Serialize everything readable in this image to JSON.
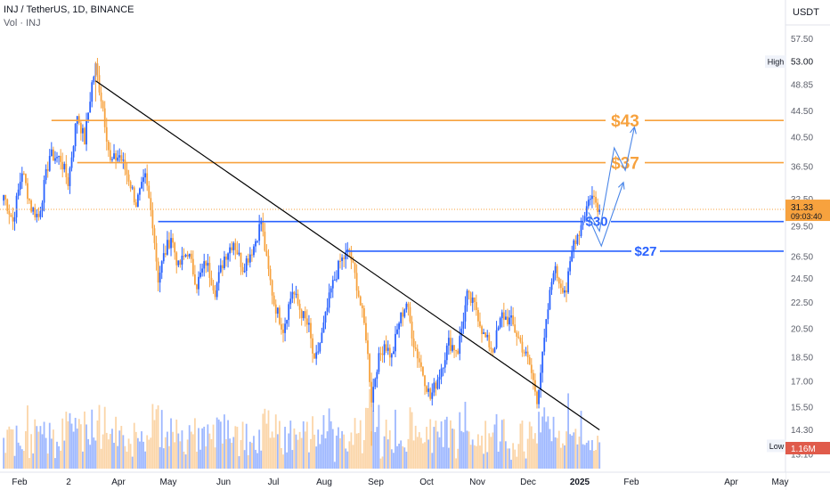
{
  "header": {
    "symbol_line": "INJ / TetherUS, 1D, BINANCE",
    "volume_line": "Vol · INJ"
  },
  "colors": {
    "up": "#2962ff",
    "down": "#f7a23e",
    "level_orange": "#f7a23e",
    "level_blue": "#2962ff",
    "trendline": "#000000",
    "arrow": "#4a86e8",
    "last_price_label": "#f7a23e"
  },
  "chart_data": {
    "type": "candlestick",
    "currency": "USDT",
    "y_axis_scale": "log",
    "ylim": [
      12.3,
      66
    ],
    "y_ticks": [
      "57.50",
      "53.00",
      "48.85",
      "44.50",
      "40.50",
      "36.50",
      "32.50",
      "29.50",
      "26.50",
      "24.50",
      "22.50",
      "20.50",
      "18.50",
      "17.00",
      "15.50",
      "14.30",
      "13.10"
    ],
    "x_tick_labels": [
      "Feb",
      "2",
      "Apr",
      "May",
      "Jun",
      "Jul",
      "Aug",
      "Sep",
      "Oct",
      "Nov",
      "Dec",
      "2025",
      "Feb",
      "Apr",
      "May"
    ],
    "high": {
      "label": "High",
      "value": "53.00"
    },
    "low": {
      "label": "Low",
      "value": "13.51"
    },
    "last_price": {
      "value": "31.33",
      "countdown": "09:03:40"
    },
    "volume_last": "1.16M",
    "levels": [
      {
        "label": "$43",
        "value": 43,
        "color": "orange"
      },
      {
        "label": "$37",
        "value": 37,
        "color": "orange"
      },
      {
        "label": "$30",
        "value": 30,
        "color": "blue"
      },
      {
        "label": "$27",
        "value": 27,
        "color": "blue"
      }
    ],
    "trendline": {
      "start": {
        "date": "2024-03-09",
        "price": 49.5
      },
      "end": {
        "date": "2024-12-08",
        "price": 14.3
      }
    },
    "projection_arrows": [
      [
        [
          "2024-12-02",
          31.0
        ],
        [
          "2024-12-08",
          29.0
        ],
        [
          "2024-12-16",
          39.0
        ],
        [
          "2024-12-22",
          36.0
        ],
        [
          "2024-12-27",
          42.0
        ]
      ],
      [
        [
          "2024-12-02",
          30.5
        ],
        [
          "2024-12-09",
          27.5
        ],
        [
          "2024-12-21",
          34.5
        ]
      ]
    ],
    "anchors": [
      [
        "2024-01-19",
        33.0
      ],
      [
        "2024-01-24",
        30.0
      ],
      [
        "2024-01-29",
        36.0
      ],
      [
        "2024-02-03",
        31.5
      ],
      [
        "2024-02-07",
        30.5
      ],
      [
        "2024-02-13",
        38.0
      ],
      [
        "2024-02-19",
        37.5
      ],
      [
        "2024-02-23",
        34.5
      ],
      [
        "2024-02-28",
        44.0
      ],
      [
        "2024-03-03",
        40.0
      ],
      [
        "2024-03-07",
        49.0
      ],
      [
        "2024-03-09",
        52.0
      ],
      [
        "2024-03-13",
        45.0
      ],
      [
        "2024-03-17",
        37.0
      ],
      [
        "2024-03-22",
        38.0
      ],
      [
        "2024-03-27",
        35.0
      ],
      [
        "2024-03-31",
        32.0
      ],
      [
        "2024-04-05",
        35.0
      ],
      [
        "2024-04-09",
        30.0
      ],
      [
        "2024-04-12",
        24.5
      ],
      [
        "2024-04-15",
        26.5
      ],
      [
        "2024-04-19",
        28.5
      ],
      [
        "2024-04-23",
        25.5
      ],
      [
        "2024-04-28",
        27.0
      ],
      [
        "2024-05-03",
        24.0
      ],
      [
        "2024-05-08",
        26.0
      ],
      [
        "2024-05-13",
        23.5
      ],
      [
        "2024-05-18",
        26.5
      ],
      [
        "2024-05-23",
        28.0
      ],
      [
        "2024-05-28",
        25.5
      ],
      [
        "2024-06-03",
        27.5
      ],
      [
        "2024-06-07",
        30.0
      ],
      [
        "2024-06-10",
        26.0
      ],
      [
        "2024-06-14",
        22.5
      ],
      [
        "2024-06-19",
        20.5
      ],
      [
        "2024-06-24",
        23.5
      ],
      [
        "2024-06-28",
        22.0
      ],
      [
        "2024-07-03",
        20.5
      ],
      [
        "2024-07-06",
        18.0
      ],
      [
        "2024-07-10",
        20.0
      ],
      [
        "2024-07-15",
        23.5
      ],
      [
        "2024-07-20",
        26.0
      ],
      [
        "2024-07-25",
        27.0
      ],
      [
        "2024-07-29",
        24.0
      ],
      [
        "2024-08-03",
        20.0
      ],
      [
        "2024-08-06",
        16.0
      ],
      [
        "2024-08-09",
        18.0
      ],
      [
        "2024-08-13",
        19.5
      ],
      [
        "2024-08-17",
        18.5
      ],
      [
        "2024-08-21",
        21.0
      ],
      [
        "2024-08-25",
        22.5
      ],
      [
        "2024-08-29",
        19.5
      ],
      [
        "2024-09-03",
        17.5
      ],
      [
        "2024-09-07",
        16.0
      ],
      [
        "2024-09-12",
        17.5
      ],
      [
        "2024-09-17",
        19.5
      ],
      [
        "2024-09-22",
        19.0
      ],
      [
        "2024-09-27",
        23.0
      ],
      [
        "2024-10-02",
        22.0
      ],
      [
        "2024-10-06",
        20.0
      ],
      [
        "2024-10-11",
        19.0
      ],
      [
        "2024-10-16",
        21.5
      ],
      [
        "2024-10-21",
        21.0
      ],
      [
        "2024-10-26",
        19.5
      ],
      [
        "2024-10-31",
        18.0
      ],
      [
        "2024-11-04",
        16.0
      ],
      [
        "2024-11-07",
        18.5
      ],
      [
        "2024-11-10",
        22.0
      ],
      [
        "2024-11-13",
        25.5
      ],
      [
        "2024-11-17",
        24.0
      ],
      [
        "2024-11-20",
        23.5
      ],
      [
        "2024-11-24",
        28.0
      ],
      [
        "2024-11-27",
        29.0
      ],
      [
        "2024-11-30",
        31.0
      ],
      [
        "2024-12-03",
        33.0
      ],
      [
        "2024-12-05",
        32.5
      ],
      [
        "2024-12-08",
        31.3
      ]
    ]
  }
}
